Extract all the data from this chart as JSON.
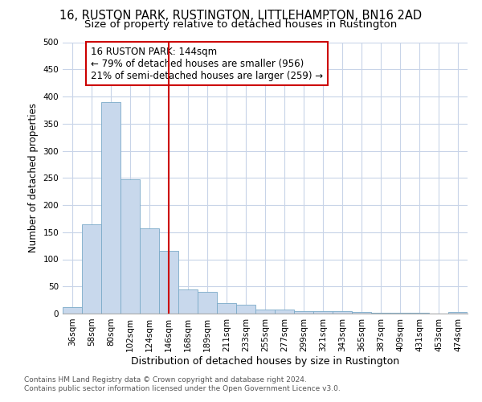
{
  "title": "16, RUSTON PARK, RUSTINGTON, LITTLEHAMPTON, BN16 2AD",
  "subtitle": "Size of property relative to detached houses in Rustington",
  "xlabel": "Distribution of detached houses by size in Rustington",
  "ylabel": "Number of detached properties",
  "categories": [
    "36sqm",
    "58sqm",
    "80sqm",
    "102sqm",
    "124sqm",
    "146sqm",
    "168sqm",
    "189sqm",
    "211sqm",
    "233sqm",
    "255sqm",
    "277sqm",
    "299sqm",
    "321sqm",
    "343sqm",
    "365sqm",
    "387sqm",
    "409sqm",
    "431sqm",
    "453sqm",
    "474sqm"
  ],
  "values": [
    12,
    165,
    390,
    248,
    157,
    115,
    45,
    40,
    20,
    17,
    8,
    7,
    5,
    5,
    4,
    3,
    2,
    2,
    2,
    0,
    3
  ],
  "bar_color": "#c8d8ec",
  "bar_edgecolor": "#7aaac8",
  "vline_x_index": 5,
  "vline_color": "#cc0000",
  "annotation_text": "16 RUSTON PARK: 144sqm\n← 79% of detached houses are smaller (956)\n21% of semi-detached houses are larger (259) →",
  "annotation_box_color": "#cc0000",
  "ylim": [
    0,
    500
  ],
  "yticks": [
    0,
    50,
    100,
    150,
    200,
    250,
    300,
    350,
    400,
    450,
    500
  ],
  "footer_line1": "Contains HM Land Registry data © Crown copyright and database right 2024.",
  "footer_line2": "Contains public sector information licensed under the Open Government Licence v3.0.",
  "background_color": "#ffffff",
  "grid_color": "#c8d4e8",
  "title_fontsize": 10.5,
  "subtitle_fontsize": 9.5,
  "tick_fontsize": 7.5,
  "ylabel_fontsize": 8.5,
  "xlabel_fontsize": 9,
  "annotation_fontsize": 8.5,
  "footer_fontsize": 6.5
}
